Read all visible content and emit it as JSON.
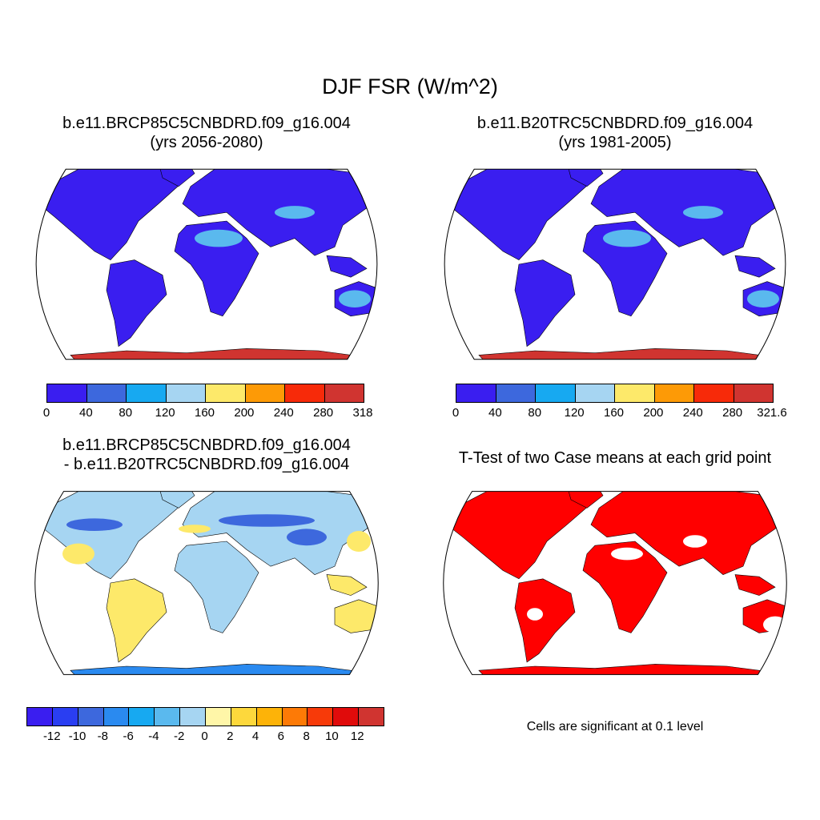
{
  "title": "DJF FSR (W/m^2)",
  "panels": [
    {
      "id": "p1",
      "title_line1": "b.e11.BRCP85C5CNBDRD.f09_g16.004",
      "title_line2": "(yrs 2056-2080)",
      "colorbar": {
        "labels": [
          "0",
          "40",
          "80",
          "120",
          "160",
          "200",
          "240",
          "280",
          "318"
        ],
        "colors": [
          "#3a1ef0",
          "#3d68dd",
          "#17a9f1",
          "#a6d5f2",
          "#fde96a",
          "#fd9a06",
          "#f72a09",
          "#d03430"
        ]
      }
    },
    {
      "id": "p2",
      "title_line1": "b.e11.B20TRC5CNBDRD.f09_g16.004",
      "title_line2": "(yrs 1981-2005)",
      "colorbar": {
        "labels": [
          "0",
          "40",
          "80",
          "120",
          "160",
          "200",
          "240",
          "280",
          "321.6"
        ],
        "colors": [
          "#3a1ef0",
          "#3d68dd",
          "#17a9f1",
          "#a6d5f2",
          "#fde96a",
          "#fd9a06",
          "#f72a09",
          "#d03430"
        ]
      }
    },
    {
      "id": "p3",
      "title_line1": "b.e11.BRCP85C5CNBDRD.f09_g16.004",
      "title_line2": "- b.e11.B20TRC5CNBDRD.f09_g16.004",
      "colorbar": {
        "labels": [
          "-12",
          "-10",
          "-8",
          "-6",
          "-4",
          "-2",
          "0",
          "2",
          "4",
          "6",
          "8",
          "10",
          "12"
        ],
        "colors": [
          "#3a1ef0",
          "#2a3ef2",
          "#3d68dd",
          "#2a8af0",
          "#17a9f1",
          "#5ab9ee",
          "#a6d5f2",
          "#fff6a8",
          "#fdd83c",
          "#fdb308",
          "#fd7a06",
          "#f73a09",
          "#e00b0b",
          "#d03430"
        ]
      }
    },
    {
      "id": "p4",
      "title_line1": "T-Test of two Case means at each grid point",
      "note": "Cells are significant at 0.1 level"
    }
  ],
  "colors": {
    "land_low": "#3a1ef0",
    "land_mid": "#5ab9ee",
    "antarctica": "#d03430",
    "diff_pos": "#fde96a",
    "diff_neutral": "#a6d5f2",
    "diff_neg": "#3d68dd",
    "ttest_sig": "#ff0000"
  }
}
